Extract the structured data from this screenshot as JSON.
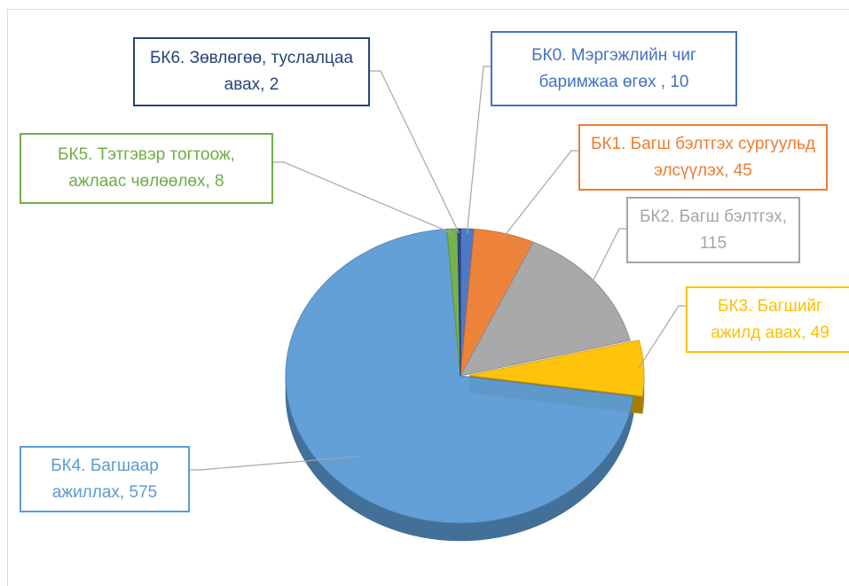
{
  "chart_data": {
    "type": "pie",
    "categories": [
      "БК0. Мэргэжлийн чиг баримжаа өгөх ,",
      "БК1. Багш бэлтгэх сургуульд элсүүлэх,",
      "БК2. Багш бэлтгэх,",
      "БК3. Багшийг ажилд авах,",
      "БК4. Багшаар ажиллах,",
      "БК5. Тэтгэвэр тогтоож, ажлаас чөлөөлөх,",
      "БК6. Зөвлөгөө, туслалцаа авах,"
    ],
    "values": [
      10,
      45,
      115,
      49,
      575,
      8,
      2
    ],
    "colors": [
      "#4472c4",
      "#ed7d31",
      "#a5a5a5",
      "#ffc000",
      "#5b9bd5",
      "#70ad47",
      "#264478"
    ],
    "exploded": [
      3
    ]
  }
}
